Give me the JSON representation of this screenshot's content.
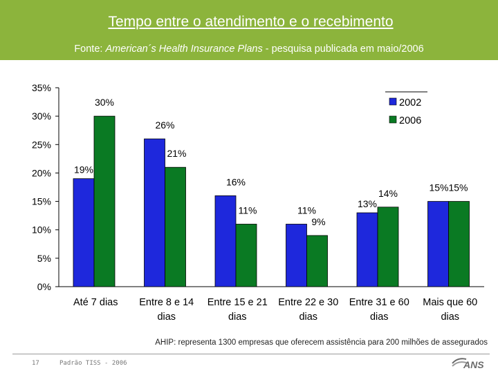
{
  "header": {
    "title": "Tempo entre o atendimento e o recebimento",
    "source_prefix": "Fonte: ",
    "source_italic": "American´s Health Insurance Plans",
    "source_suffix": "  - pesquisa publicada em maio/2006"
  },
  "chart_data": {
    "type": "bar",
    "title": "",
    "xlabel": "",
    "ylabel": "",
    "ylim": [
      0,
      35
    ],
    "yticks": [
      "0%",
      "5%",
      "10%",
      "15%",
      "20%",
      "25%",
      "30%",
      "35%"
    ],
    "categories": [
      [
        "Até 7 dias"
      ],
      [
        "Entre 8 e 14",
        "dias"
      ],
      [
        "Entre 15 e 21",
        "dias"
      ],
      [
        "Entre 22 e 30",
        "dias"
      ],
      [
        "Entre 31 e 60",
        "dias"
      ],
      [
        "Mais que 60",
        "dias"
      ]
    ],
    "series": [
      {
        "name": "2002",
        "color": "#1e28dc",
        "values": [
          19,
          26,
          16,
          11,
          13,
          15
        ],
        "labels": [
          "19%",
          "26%",
          "16%",
          "11%",
          "13%",
          "15%"
        ]
      },
      {
        "name": "2006",
        "color": "#0a7a23",
        "values": [
          30,
          21,
          11,
          9,
          14,
          15
        ],
        "labels": [
          "30%",
          "21%",
          "11%",
          "9%",
          "14%",
          "15%"
        ]
      }
    ],
    "legend": "top-right",
    "grid": false
  },
  "footnote": "AHIP: representa 1300 empresas que oferecem assistência para 200 milhões de assegurados",
  "footer": {
    "page": "17",
    "text": "Padrão TISS - 2006",
    "logo": "ANS"
  }
}
